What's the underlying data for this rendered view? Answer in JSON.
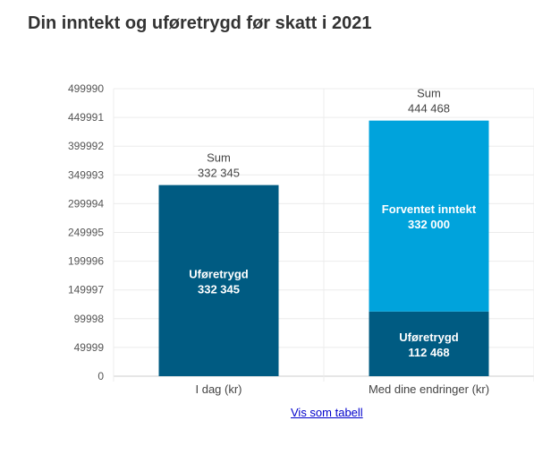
{
  "header": {
    "title": "Din inntekt og uføretrygd før skatt i 2021"
  },
  "link": {
    "show_table_label": "Vis som tabell"
  },
  "chart_data": {
    "type": "bar",
    "stacked": true,
    "title": "Din inntekt og uføretrygd før skatt i 2021",
    "categories": [
      "I dag (kr)",
      "Med dine endringer (kr)"
    ],
    "series": [
      {
        "name": "Uføretrygd",
        "values": [
          332345,
          112468
        ],
        "color": "#005b82"
      },
      {
        "name": "Forventet inntekt",
        "values": [
          0,
          332000
        ],
        "color": "#00a3dc"
      }
    ],
    "totals": [
      332345,
      444468
    ],
    "total_label": "Sum",
    "value_labels": {
      "series": [
        [
          "332 345",
          "112 468"
        ],
        [
          "",
          "332 000"
        ]
      ],
      "totals": [
        "332 345",
        "444 468"
      ]
    },
    "yticks": [
      "0",
      "49999",
      "99998",
      "149997",
      "199996",
      "249995",
      "299994",
      "349993",
      "399992",
      "449991",
      "499990"
    ],
    "ylim": [
      0,
      499990
    ],
    "grid": true,
    "legend": "none"
  }
}
